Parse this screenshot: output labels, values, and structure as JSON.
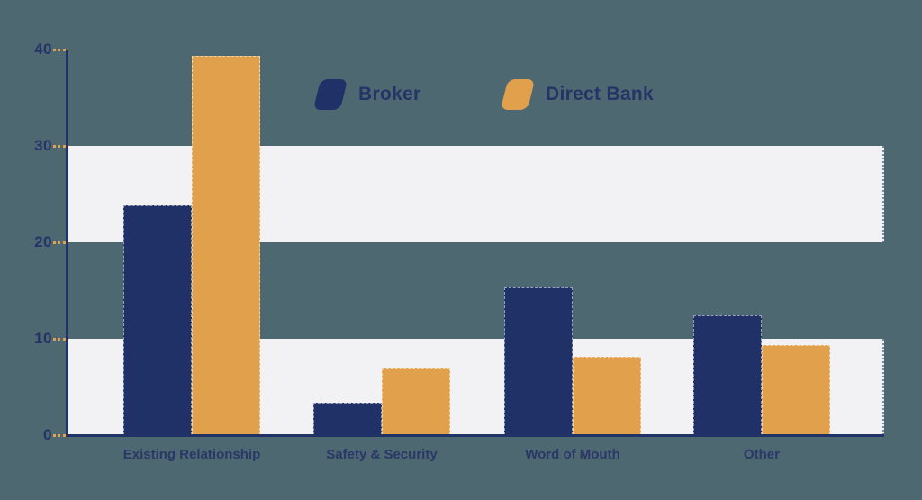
{
  "chart_data": {
    "type": "bar",
    "title": "",
    "xlabel": "",
    "ylabel": "",
    "categories": [
      "Existing Relationship",
      "Safety & Security",
      "Word of Mouth",
      "Other"
    ],
    "series": [
      {
        "name": "Broker",
        "color": "#1f3166",
        "values": [
          23.8,
          3.4,
          15.3,
          12.4
        ]
      },
      {
        "name": "Direct Bank",
        "color": "#e1a04c",
        "values": [
          39.3,
          6.9,
          8.1,
          9.3
        ]
      }
    ],
    "ylim": [
      0,
      40
    ],
    "yticks": [
      0,
      10,
      20,
      30,
      40
    ],
    "legend_position": "top-center",
    "grid": "alternating-horizontal-bands",
    "band_value_ranges": [
      [
        0,
        10
      ],
      [
        20,
        30
      ]
    ]
  },
  "colors": {
    "background": "#4d6871",
    "band": "#f2f2f4",
    "axis": "#213366",
    "tick": "#e2a14d",
    "text": "#253467",
    "broker": "#1f3166",
    "direct_bank": "#e1a04c"
  },
  "legend": {
    "broker_label": "Broker",
    "direct_bank_label": "Direct Bank"
  }
}
